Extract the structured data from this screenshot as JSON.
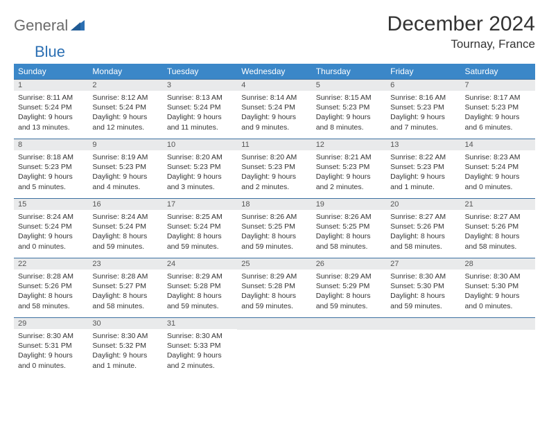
{
  "brand": {
    "part1": "General",
    "part2": "Blue"
  },
  "title": "December 2024",
  "location": "Tournay, France",
  "colors": {
    "header_bg": "#3b87c8",
    "header_text": "#ffffff",
    "daynum_bg": "#e9eaeb",
    "rule": "#3b6fa0",
    "brand_gray": "#6b6b6b",
    "brand_blue": "#2b6fb3",
    "page_bg": "#ffffff",
    "text": "#333333"
  },
  "weekdays": [
    "Sunday",
    "Monday",
    "Tuesday",
    "Wednesday",
    "Thursday",
    "Friday",
    "Saturday"
  ],
  "weeks": [
    [
      {
        "n": "1",
        "sr": "8:11 AM",
        "ss": "5:24 PM",
        "dl": "9 hours and 13 minutes."
      },
      {
        "n": "2",
        "sr": "8:12 AM",
        "ss": "5:24 PM",
        "dl": "9 hours and 12 minutes."
      },
      {
        "n": "3",
        "sr": "8:13 AM",
        "ss": "5:24 PM",
        "dl": "9 hours and 11 minutes."
      },
      {
        "n": "4",
        "sr": "8:14 AM",
        "ss": "5:24 PM",
        "dl": "9 hours and 9 minutes."
      },
      {
        "n": "5",
        "sr": "8:15 AM",
        "ss": "5:23 PM",
        "dl": "9 hours and 8 minutes."
      },
      {
        "n": "6",
        "sr": "8:16 AM",
        "ss": "5:23 PM",
        "dl": "9 hours and 7 minutes."
      },
      {
        "n": "7",
        "sr": "8:17 AM",
        "ss": "5:23 PM",
        "dl": "9 hours and 6 minutes."
      }
    ],
    [
      {
        "n": "8",
        "sr": "8:18 AM",
        "ss": "5:23 PM",
        "dl": "9 hours and 5 minutes."
      },
      {
        "n": "9",
        "sr": "8:19 AM",
        "ss": "5:23 PM",
        "dl": "9 hours and 4 minutes."
      },
      {
        "n": "10",
        "sr": "8:20 AM",
        "ss": "5:23 PM",
        "dl": "9 hours and 3 minutes."
      },
      {
        "n": "11",
        "sr": "8:20 AM",
        "ss": "5:23 PM",
        "dl": "9 hours and 2 minutes."
      },
      {
        "n": "12",
        "sr": "8:21 AM",
        "ss": "5:23 PM",
        "dl": "9 hours and 2 minutes."
      },
      {
        "n": "13",
        "sr": "8:22 AM",
        "ss": "5:23 PM",
        "dl": "9 hours and 1 minute."
      },
      {
        "n": "14",
        "sr": "8:23 AM",
        "ss": "5:24 PM",
        "dl": "9 hours and 0 minutes."
      }
    ],
    [
      {
        "n": "15",
        "sr": "8:24 AM",
        "ss": "5:24 PM",
        "dl": "9 hours and 0 minutes."
      },
      {
        "n": "16",
        "sr": "8:24 AM",
        "ss": "5:24 PM",
        "dl": "8 hours and 59 minutes."
      },
      {
        "n": "17",
        "sr": "8:25 AM",
        "ss": "5:24 PM",
        "dl": "8 hours and 59 minutes."
      },
      {
        "n": "18",
        "sr": "8:26 AM",
        "ss": "5:25 PM",
        "dl": "8 hours and 59 minutes."
      },
      {
        "n": "19",
        "sr": "8:26 AM",
        "ss": "5:25 PM",
        "dl": "8 hours and 58 minutes."
      },
      {
        "n": "20",
        "sr": "8:27 AM",
        "ss": "5:26 PM",
        "dl": "8 hours and 58 minutes."
      },
      {
        "n": "21",
        "sr": "8:27 AM",
        "ss": "5:26 PM",
        "dl": "8 hours and 58 minutes."
      }
    ],
    [
      {
        "n": "22",
        "sr": "8:28 AM",
        "ss": "5:26 PM",
        "dl": "8 hours and 58 minutes."
      },
      {
        "n": "23",
        "sr": "8:28 AM",
        "ss": "5:27 PM",
        "dl": "8 hours and 58 minutes."
      },
      {
        "n": "24",
        "sr": "8:29 AM",
        "ss": "5:28 PM",
        "dl": "8 hours and 59 minutes."
      },
      {
        "n": "25",
        "sr": "8:29 AM",
        "ss": "5:28 PM",
        "dl": "8 hours and 59 minutes."
      },
      {
        "n": "26",
        "sr": "8:29 AM",
        "ss": "5:29 PM",
        "dl": "8 hours and 59 minutes."
      },
      {
        "n": "27",
        "sr": "8:30 AM",
        "ss": "5:30 PM",
        "dl": "8 hours and 59 minutes."
      },
      {
        "n": "28",
        "sr": "8:30 AM",
        "ss": "5:30 PM",
        "dl": "9 hours and 0 minutes."
      }
    ],
    [
      {
        "n": "29",
        "sr": "8:30 AM",
        "ss": "5:31 PM",
        "dl": "9 hours and 0 minutes."
      },
      {
        "n": "30",
        "sr": "8:30 AM",
        "ss": "5:32 PM",
        "dl": "9 hours and 1 minute."
      },
      {
        "n": "31",
        "sr": "8:30 AM",
        "ss": "5:33 PM",
        "dl": "9 hours and 2 minutes."
      },
      null,
      null,
      null,
      null
    ]
  ],
  "labels": {
    "sunrise": "Sunrise: ",
    "sunset": "Sunset: ",
    "daylight": "Daylight: "
  }
}
